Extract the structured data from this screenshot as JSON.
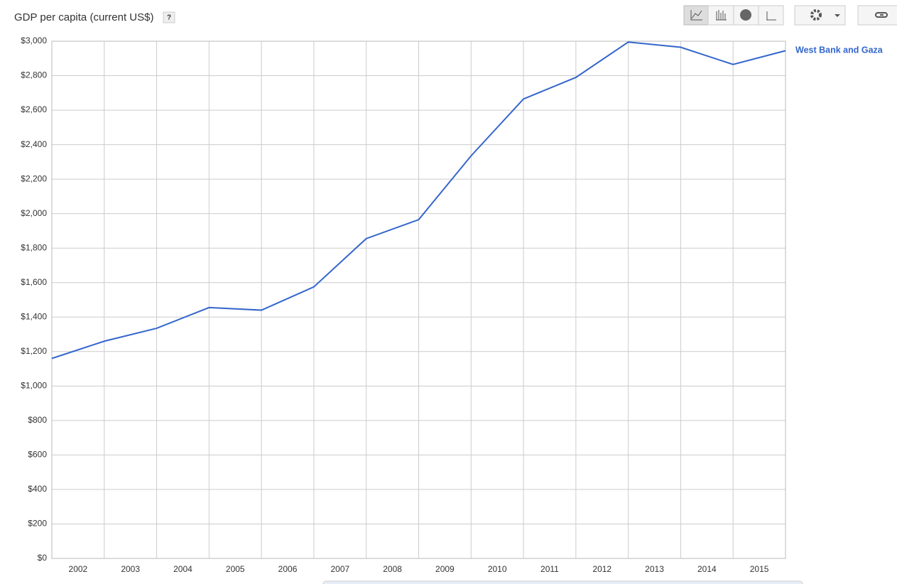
{
  "chart_data": {
    "type": "line",
    "title": "GDP per capita (current US$)",
    "help": "?",
    "categories": [
      "2002",
      "2003",
      "2004",
      "2005",
      "2006",
      "2007",
      "2008",
      "2009",
      "2010",
      "2011",
      "2012",
      "2013",
      "2014",
      "2015",
      null
    ],
    "series": [
      {
        "name": "West Bank and Gaza",
        "color": "#3366cc",
        "values": [
          1160,
          1260,
          1335,
          1455,
          1440,
          1575,
          1855,
          1965,
          2335,
          2665,
          2790,
          2995,
          2965,
          2865,
          2945
        ]
      }
    ],
    "ylim": [
      0,
      3000
    ],
    "yticks": [
      {
        "value": 0,
        "label": "$0"
      },
      {
        "value": 200,
        "label": "$200"
      },
      {
        "value": 400,
        "label": "$400"
      },
      {
        "value": 600,
        "label": "$600"
      },
      {
        "value": 800,
        "label": "$800"
      },
      {
        "value": 1000,
        "label": "$1,000"
      },
      {
        "value": 1200,
        "label": "$1,200"
      },
      {
        "value": 1400,
        "label": "$1,400"
      },
      {
        "value": 1600,
        "label": "$1,600"
      },
      {
        "value": 1800,
        "label": "$1,800"
      },
      {
        "value": 2000,
        "label": "$2,000"
      },
      {
        "value": 2200,
        "label": "$2,200"
      },
      {
        "value": 2400,
        "label": "$2,400"
      },
      {
        "value": 2600,
        "label": "$2,600"
      },
      {
        "value": 2800,
        "label": "$2,800"
      },
      {
        "value": 3000,
        "label": "$3,000"
      }
    ],
    "grid": true
  }
}
